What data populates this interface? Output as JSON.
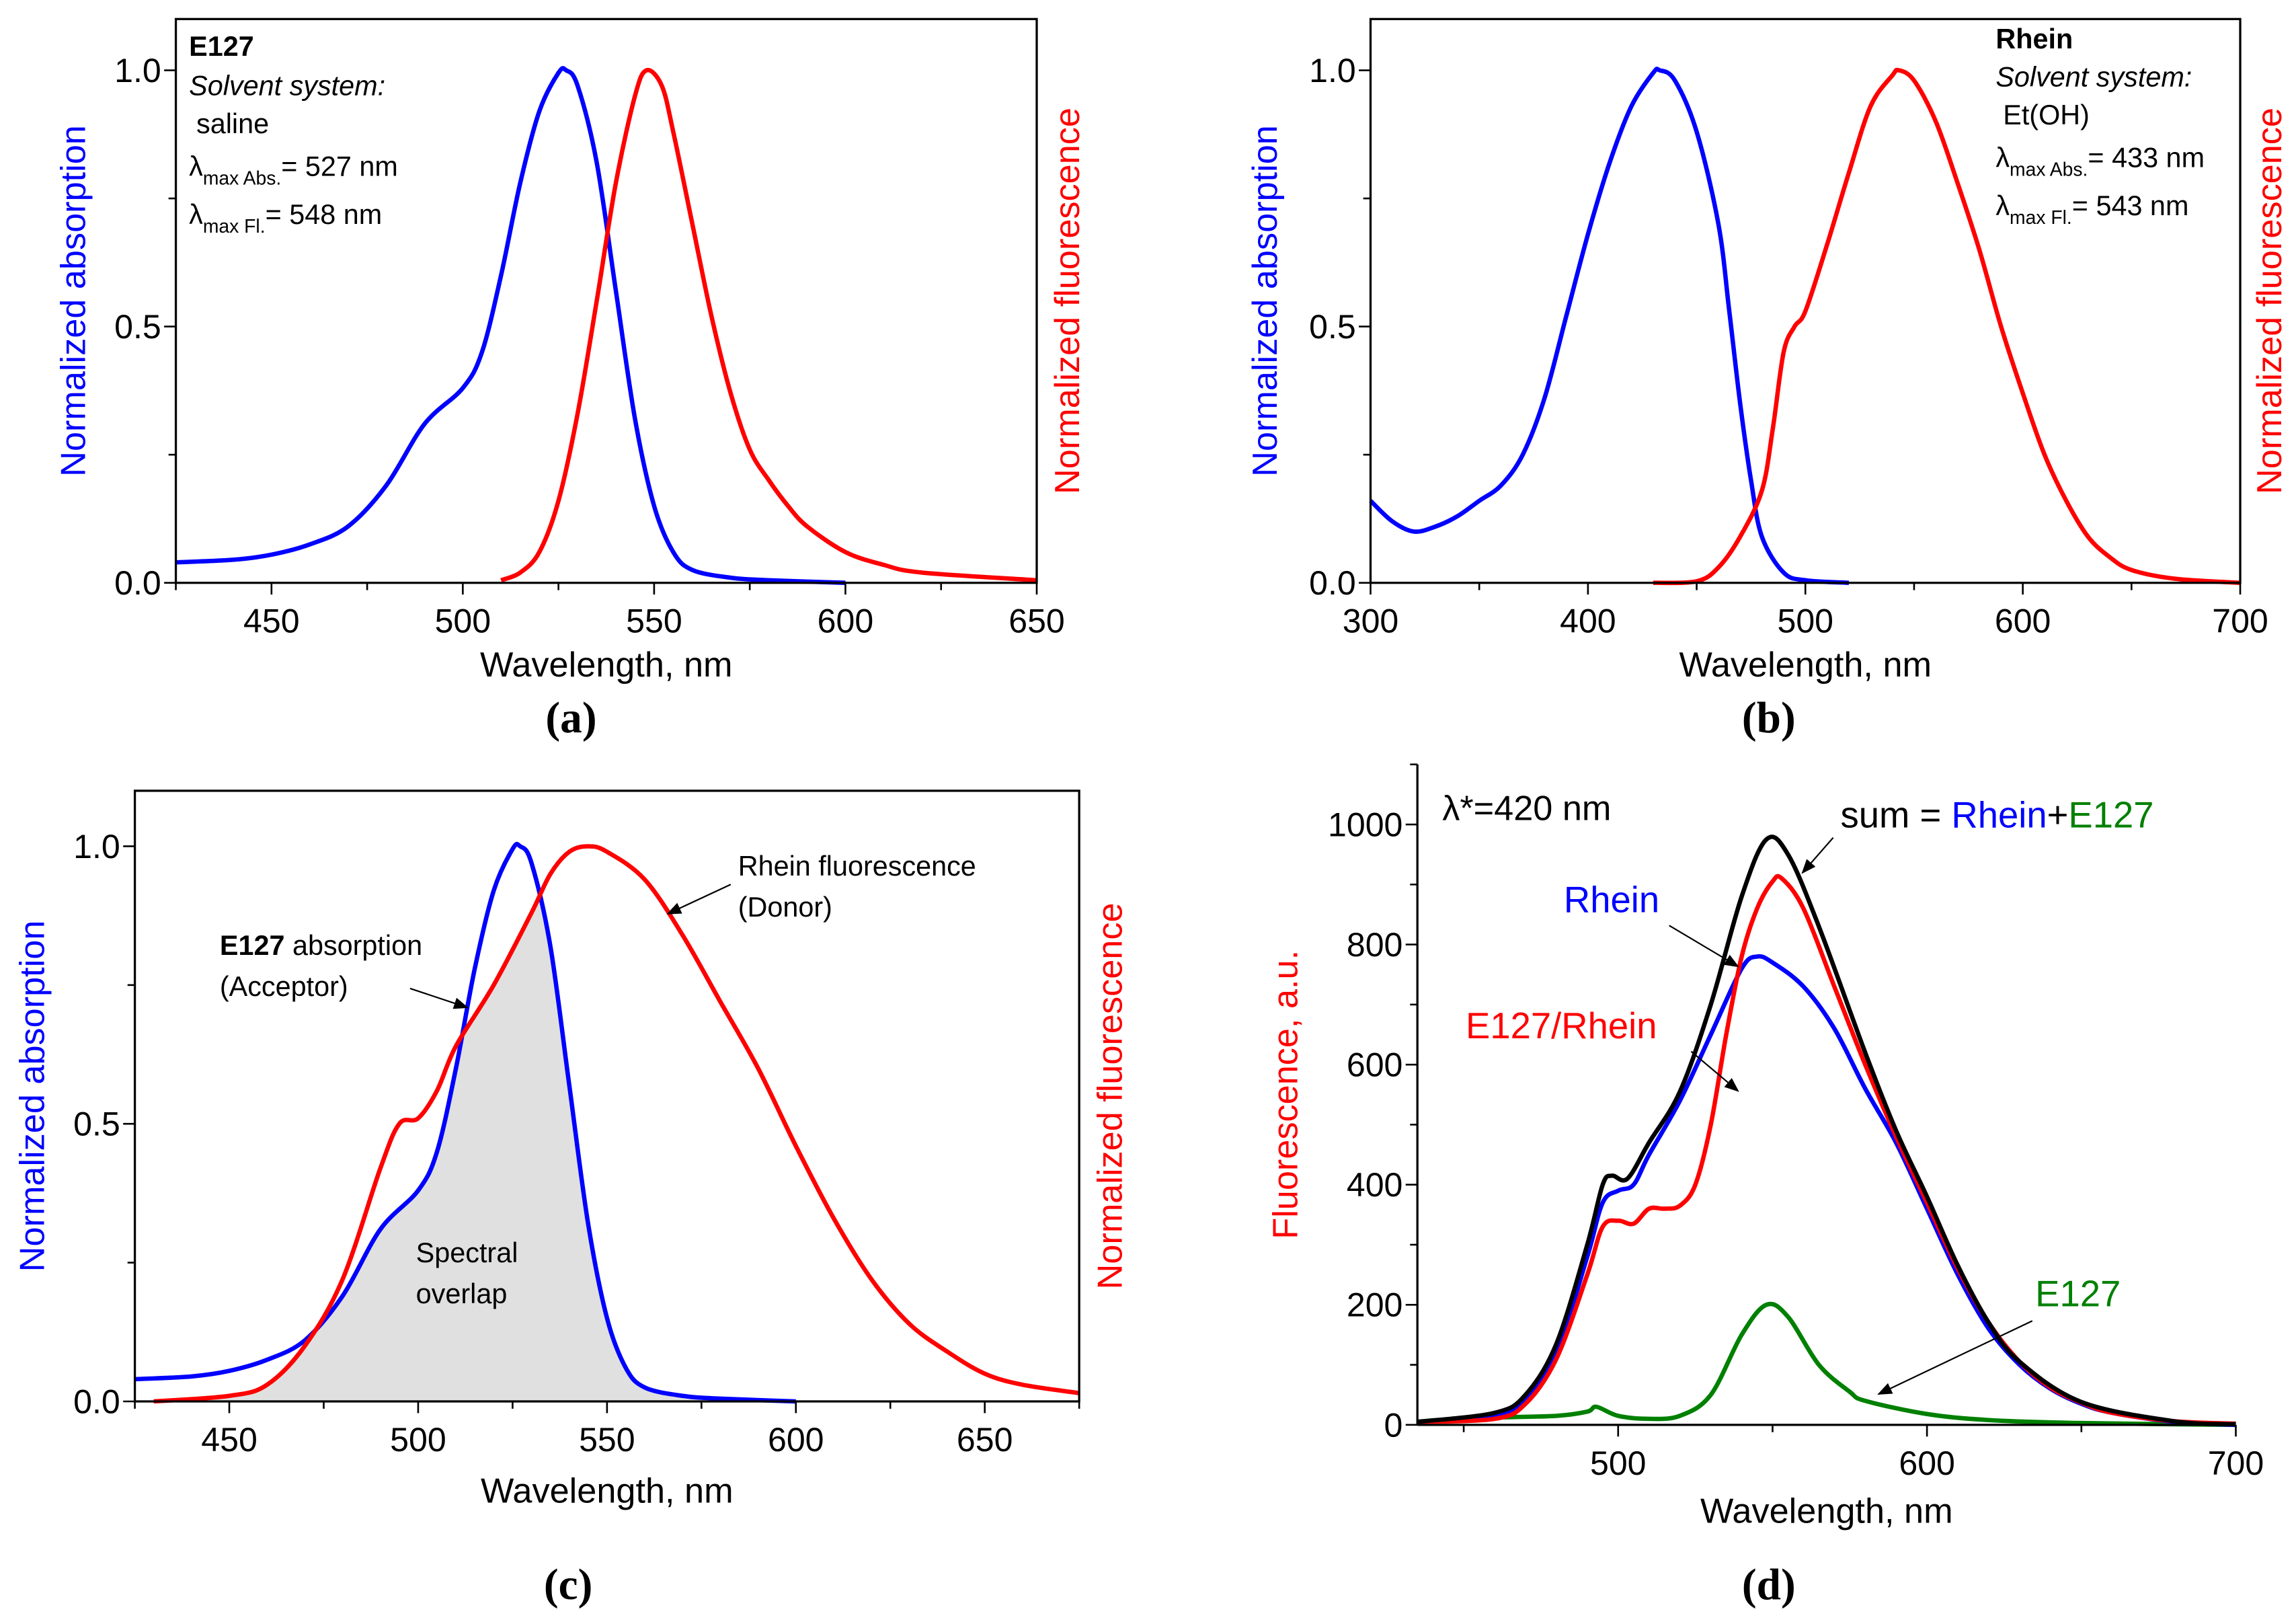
{
  "colors": {
    "blue": "#0000ff",
    "red": "#ff0000",
    "green": "#008000",
    "black": "#000000",
    "overlap": "#e0e0e0"
  },
  "chart_data": [
    {
      "id": "a",
      "panel_label": "(a)",
      "type": "line",
      "xlabel": "Wavelength, nm",
      "ylabel": "Normalized absorption",
      "ylabel_right": "Normalized fluorescence",
      "xlim": [
        425,
        650
      ],
      "ylim": [
        0,
        1.1
      ],
      "xticks": [
        450,
        500,
        550,
        600,
        650
      ],
      "xtick_labels": [
        "450",
        "500",
        "550",
        "600",
        "650"
      ],
      "yticks": [
        0,
        0.5,
        1.0
      ],
      "ytick_labels": [
        "0.0",
        "0.5",
        "1.0"
      ],
      "annotation": {
        "title": "E127",
        "solvent_label": "Solvent system:",
        "solvent": "saline",
        "lambda_abs_sub": "max Abs.",
        "lambda_abs_val": "= 527 nm",
        "lambda_fl_sub": "max Fl.",
        "lambda_fl_val": "= 548 nm"
      },
      "series": [
        {
          "name": "E127 absorption",
          "color": "blue",
          "x": [
            425,
            440,
            450,
            460,
            470,
            480,
            490,
            500,
            505,
            510,
            515,
            520,
            525,
            527,
            530,
            535,
            540,
            545,
            550,
            555,
            560,
            570,
            580,
            600
          ],
          "y": [
            0.04,
            0.045,
            0.055,
            0.075,
            0.11,
            0.19,
            0.31,
            0.38,
            0.45,
            0.6,
            0.78,
            0.92,
            0.995,
            1.0,
            0.97,
            0.82,
            0.57,
            0.32,
            0.15,
            0.06,
            0.025,
            0.01,
            0.005,
            0.0
          ]
        },
        {
          "name": "E127 fluorescence",
          "color": "red",
          "x": [
            510,
            515,
            520,
            525,
            530,
            535,
            540,
            545,
            548,
            552,
            555,
            560,
            565,
            570,
            575,
            580,
            585,
            590,
            600,
            610,
            620,
            650
          ],
          "y": [
            0.005,
            0.02,
            0.06,
            0.16,
            0.33,
            0.55,
            0.78,
            0.95,
            1.0,
            0.97,
            0.88,
            0.7,
            0.52,
            0.37,
            0.26,
            0.2,
            0.15,
            0.11,
            0.06,
            0.035,
            0.02,
            0.005
          ]
        }
      ]
    },
    {
      "id": "b",
      "panel_label": "(b)",
      "type": "line",
      "xlabel": "Wavelength, nm",
      "ylabel": "Normalized absorption",
      "ylabel_right": "Normalized fluorescence",
      "xlim": [
        300,
        700
      ],
      "ylim": [
        0,
        1.1
      ],
      "xticks": [
        300,
        400,
        500,
        600,
        700
      ],
      "xtick_labels": [
        "300",
        "400",
        "500",
        "600",
        "700"
      ],
      "yticks": [
        0,
        0.5,
        1.0
      ],
      "ytick_labels": [
        "0.0",
        "0.5",
        "1.0"
      ],
      "annotation": {
        "title": "Rhein",
        "solvent_label": "Solvent system:",
        "solvent": "Et(OH)",
        "lambda_abs_sub": "max Abs.",
        "lambda_abs_val": "= 433 nm",
        "lambda_fl_sub": "max Fl.",
        "lambda_fl_val": "= 543 nm"
      },
      "series": [
        {
          "name": "Rhein absorption",
          "color": "blue",
          "x": [
            300,
            310,
            320,
            330,
            340,
            350,
            360,
            370,
            380,
            390,
            400,
            410,
            420,
            430,
            433,
            440,
            450,
            460,
            465,
            470,
            475,
            480,
            490,
            500,
            520
          ],
          "y": [
            0.16,
            0.12,
            0.1,
            0.11,
            0.13,
            0.16,
            0.19,
            0.25,
            0.36,
            0.52,
            0.68,
            0.82,
            0.93,
            0.995,
            1.0,
            0.98,
            0.88,
            0.7,
            0.53,
            0.35,
            0.2,
            0.09,
            0.02,
            0.005,
            0.0
          ]
        },
        {
          "name": "Rhein fluorescence",
          "color": "red",
          "x": [
            430,
            450,
            460,
            470,
            480,
            485,
            490,
            495,
            500,
            510,
            520,
            530,
            540,
            543,
            550,
            560,
            570,
            580,
            590,
            600,
            610,
            620,
            630,
            640,
            650,
            670,
            700
          ],
          "y": [
            0,
            0.003,
            0.03,
            0.09,
            0.18,
            0.3,
            0.45,
            0.5,
            0.53,
            0.66,
            0.8,
            0.93,
            0.99,
            1.0,
            0.98,
            0.9,
            0.78,
            0.65,
            0.5,
            0.37,
            0.25,
            0.16,
            0.09,
            0.05,
            0.025,
            0.008,
            0.0
          ]
        }
      ]
    },
    {
      "id": "c",
      "panel_label": "(c)",
      "type": "line",
      "xlabel": "Wavelength, nm",
      "ylabel": "Normalized absorption",
      "ylabel_right": "Normalized fluorescence",
      "xlim": [
        425,
        675
      ],
      "ylim": [
        0,
        1.1
      ],
      "xticks": [
        450,
        500,
        550,
        600,
        650
      ],
      "xtick_labels": [
        "450",
        "500",
        "550",
        "600",
        "650"
      ],
      "yticks": [
        0,
        0.5,
        1.0
      ],
      "ytick_labels": [
        "0.0",
        "0.5",
        "1.0"
      ],
      "annotations": {
        "donor_title": "Rhein fluorescence",
        "donor_role": "(Donor)",
        "acceptor_bold": "E127",
        "acceptor_title": " absorption",
        "acceptor_role": "(Acceptor)",
        "overlap_line1": "Spectral",
        "overlap_line2": "overlap"
      },
      "fill_overlap": true,
      "series": [
        {
          "name": "E127 absorption",
          "color": "blue",
          "x": [
            425,
            440,
            450,
            460,
            470,
            480,
            490,
            500,
            505,
            510,
            515,
            520,
            525,
            527,
            530,
            535,
            540,
            545,
            550,
            555,
            560,
            570,
            580,
            600
          ],
          "y": [
            0.04,
            0.045,
            0.055,
            0.075,
            0.11,
            0.19,
            0.31,
            0.38,
            0.45,
            0.6,
            0.78,
            0.92,
            0.995,
            1.0,
            0.97,
            0.82,
            0.57,
            0.32,
            0.15,
            0.06,
            0.025,
            0.01,
            0.005,
            0.0
          ]
        },
        {
          "name": "Rhein fluorescence",
          "color": "red",
          "x": [
            430,
            450,
            460,
            470,
            480,
            490,
            495,
            500,
            505,
            510,
            520,
            530,
            535,
            540,
            545,
            550,
            560,
            570,
            580,
            590,
            600,
            610,
            620,
            630,
            640,
            650,
            660,
            675
          ],
          "y": [
            0,
            0.01,
            0.03,
            0.1,
            0.22,
            0.42,
            0.5,
            0.51,
            0.56,
            0.64,
            0.75,
            0.88,
            0.95,
            0.99,
            1.0,
            0.99,
            0.94,
            0.84,
            0.72,
            0.6,
            0.46,
            0.33,
            0.22,
            0.14,
            0.09,
            0.05,
            0.03,
            0.015
          ]
        }
      ]
    },
    {
      "id": "d",
      "panel_label": "(d)",
      "type": "line",
      "xlabel": "Wavelength, nm",
      "ylabel": "Fluorescence, a.u.",
      "xlim": [
        435,
        700
      ],
      "ylim": [
        0,
        1100
      ],
      "xticks": [
        500,
        600,
        700
      ],
      "xtick_labels": [
        "500",
        "600",
        "700"
      ],
      "yticks": [
        0,
        200,
        400,
        600,
        800,
        1000
      ],
      "ytick_labels": [
        "0",
        "200",
        "400",
        "600",
        "800",
        "1000"
      ],
      "annotations": {
        "excitation": "λ*=420 nm",
        "sum_prefix": "sum = ",
        "sum_rhein": "Rhein",
        "sum_plus": "+",
        "sum_e127": "E127",
        "rhein": "Rhein",
        "e127_rhein": "E127/Rhein",
        "e127": "E127"
      },
      "series": [
        {
          "name": "E127",
          "color": "green",
          "x": [
            435,
            460,
            480,
            490,
            493,
            500,
            510,
            520,
            530,
            540,
            548,
            555,
            565,
            575,
            580,
            600,
            620,
            650,
            700
          ],
          "y": [
            5,
            12,
            15,
            22,
            30,
            15,
            10,
            15,
            50,
            150,
            200,
            180,
            100,
            55,
            40,
            18,
            8,
            3,
            0
          ]
        },
        {
          "name": "Rhein",
          "color": "blue",
          "x": [
            435,
            460,
            470,
            480,
            490,
            495,
            500,
            505,
            510,
            520,
            530,
            540,
            545,
            550,
            560,
            570,
            580,
            590,
            600,
            610,
            620,
            630,
            640,
            650,
            660,
            680,
            700
          ],
          "y": [
            5,
            15,
            40,
            120,
            280,
            370,
            390,
            400,
            450,
            540,
            650,
            760,
            780,
            770,
            730,
            660,
            560,
            470,
            360,
            250,
            160,
            100,
            60,
            35,
            20,
            5,
            0
          ]
        },
        {
          "name": "E127/Rhein",
          "color": "red",
          "x": [
            435,
            460,
            470,
            480,
            490,
            495,
            500,
            505,
            510,
            515,
            520,
            525,
            530,
            535,
            540,
            545,
            550,
            553,
            560,
            570,
            580,
            590,
            600,
            610,
            620,
            630,
            640,
            650,
            660,
            680,
            700
          ],
          "y": [
            5,
            10,
            35,
            110,
            250,
            330,
            340,
            335,
            360,
            360,
            365,
            400,
            500,
            650,
            780,
            860,
            905,
            910,
            860,
            730,
            600,
            480,
            370,
            260,
            170,
            105,
            62,
            37,
            20,
            6,
            2
          ]
        },
        {
          "name": "sum = Rhein+E127",
          "color": "black",
          "x": [
            435,
            460,
            470,
            480,
            490,
            495,
            498,
            503,
            510,
            520,
            530,
            540,
            548,
            555,
            565,
            580,
            590,
            600,
            610,
            620,
            630,
            650,
            680,
            700
          ],
          "y": [
            5,
            20,
            50,
            135,
            300,
            400,
            415,
            410,
            470,
            555,
            700,
            880,
            975,
            950,
            830,
            620,
            490,
            380,
            265,
            170,
            105,
            38,
            6,
            1
          ]
        }
      ]
    }
  ]
}
